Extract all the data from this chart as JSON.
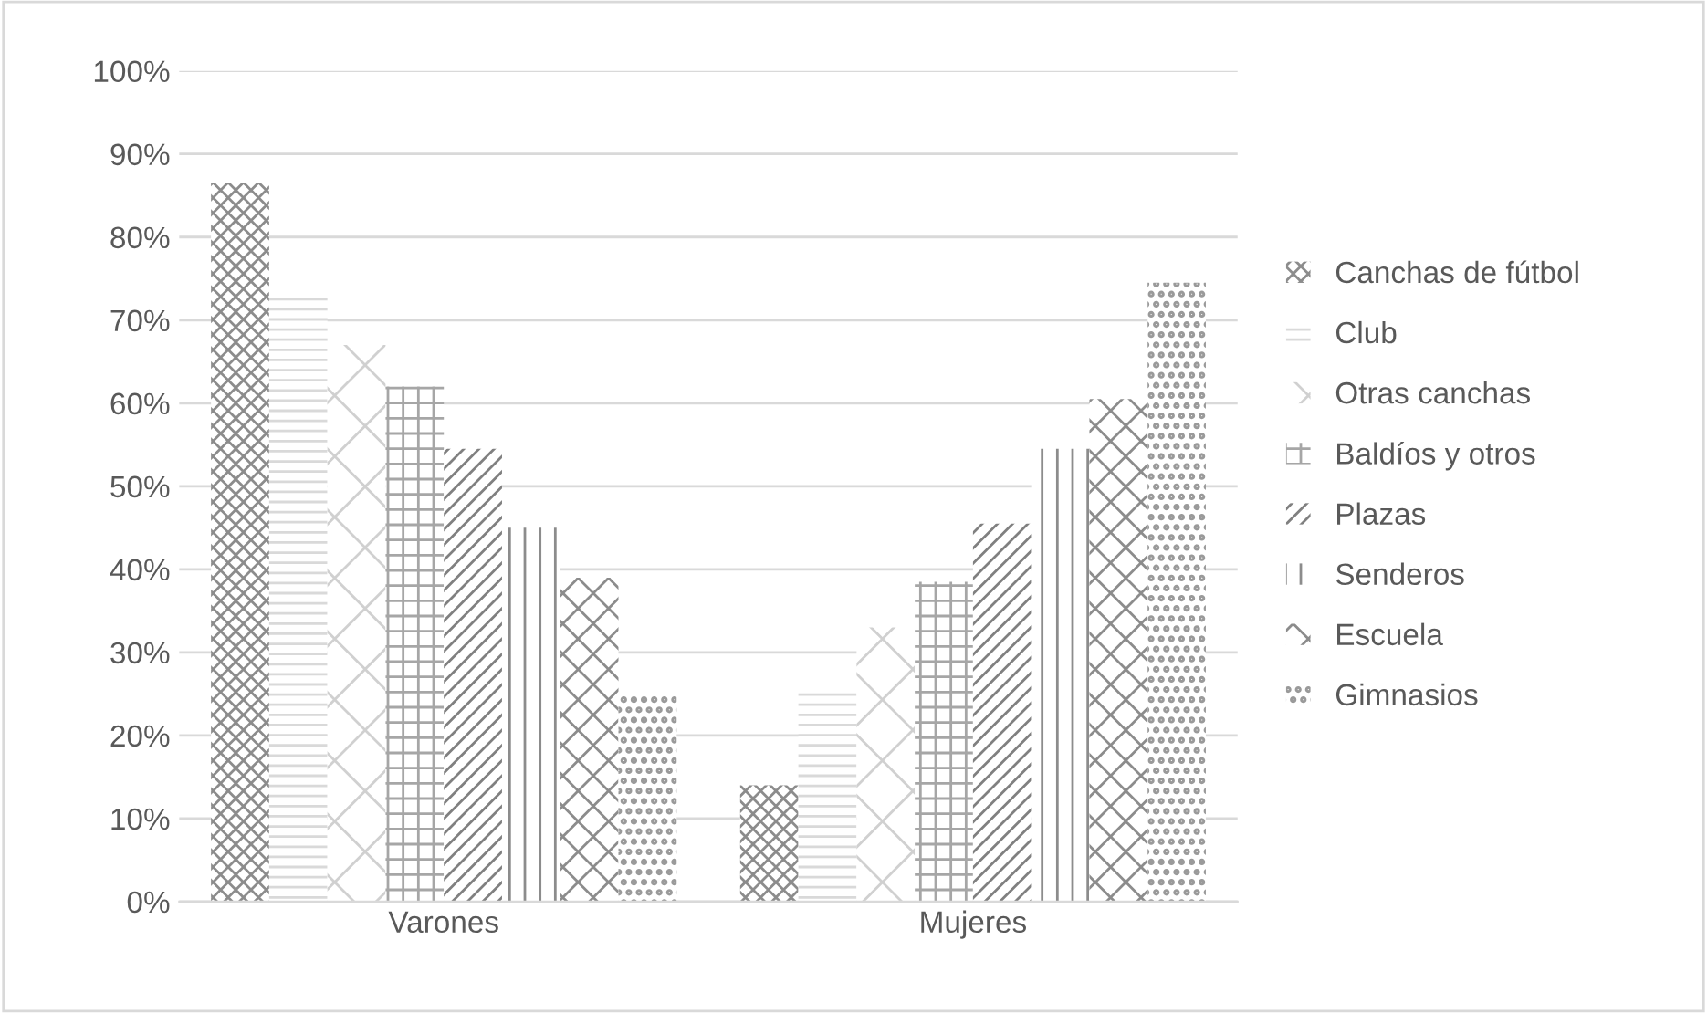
{
  "chart_data": {
    "type": "bar",
    "categories": [
      "Varones",
      "Mujeres"
    ],
    "series": [
      {
        "name": "Canchas de fútbol",
        "color": "#8c8c8c",
        "values": [
          86.5,
          14
        ]
      },
      {
        "name": "Club",
        "color": "#d9d9d9",
        "values": [
          73.5,
          25.5
        ]
      },
      {
        "name": "Otras canchas",
        "color": "#d0d0d0",
        "values": [
          67,
          33
        ]
      },
      {
        "name": "Baldíos y otros",
        "color": "#a6a6a6",
        "values": [
          62,
          38.5
        ]
      },
      {
        "name": "Plazas",
        "color": "#808080",
        "values": [
          54.5,
          45.5
        ]
      },
      {
        "name": "Senderos",
        "color": "#8c8c8c",
        "values": [
          45,
          54.5
        ]
      },
      {
        "name": "Escuela",
        "color": "#8c8c8c",
        "values": [
          39,
          60.5
        ]
      },
      {
        "name": "Gimnasios",
        "color": "#9a9a9a",
        "values": [
          25,
          74.5
        ]
      }
    ],
    "ylim": [
      0,
      100
    ],
    "yticks": [
      {
        "value": 0,
        "label": "0%"
      },
      {
        "value": 10,
        "label": "10%"
      },
      {
        "value": 20,
        "label": "20%"
      },
      {
        "value": 30,
        "label": "30%"
      },
      {
        "value": 40,
        "label": "40%"
      },
      {
        "value": 50,
        "label": "50%"
      },
      {
        "value": 60,
        "label": "60%"
      },
      {
        "value": 70,
        "label": "70%"
      },
      {
        "value": 80,
        "label": "80%"
      },
      {
        "value": 90,
        "label": "90%"
      },
      {
        "value": 100,
        "label": "100%"
      }
    ],
    "grid": "y",
    "legend": "right"
  }
}
